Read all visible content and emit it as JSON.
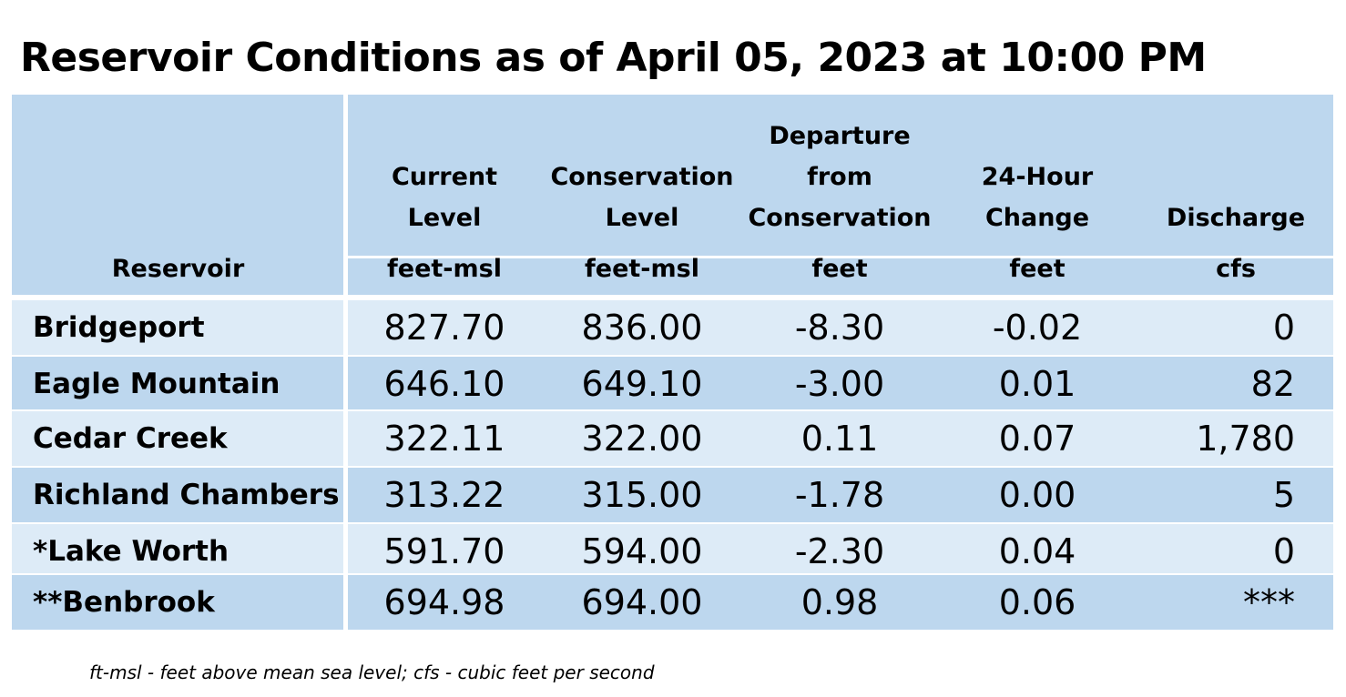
{
  "title": "Reservoir Conditions as of April 05, 2023 at 10:00 PM",
  "header": {
    "reservoir": "Reservoir",
    "current": {
      "line1": "Current",
      "line2": "Level",
      "unit": "feet-msl"
    },
    "conservation": {
      "line1": "Conservation",
      "line2": "Level",
      "unit": "feet-msl"
    },
    "departure": {
      "line1": "Departure",
      "line2": "from",
      "line3": "Conservation",
      "unit": "feet"
    },
    "change": {
      "line1": "24-Hour",
      "line2": "Change",
      "unit": "feet"
    },
    "discharge": {
      "line1": "Discharge",
      "unit": "cfs"
    }
  },
  "rows": [
    {
      "name": "Bridgeport",
      "current": "827.70",
      "conservation": "836.00",
      "departure": "-8.30",
      "change": "-0.02",
      "discharge": "0"
    },
    {
      "name": "Eagle Mountain",
      "current": "646.10",
      "conservation": "649.10",
      "departure": "-3.00",
      "change": "0.01",
      "discharge": "82"
    },
    {
      "name": "Cedar Creek",
      "current": "322.11",
      "conservation": "322.00",
      "departure": "0.11",
      "change": "0.07",
      "discharge": "1,780"
    },
    {
      "name": "Richland Chambers",
      "current": "313.22",
      "conservation": "315.00",
      "departure": "-1.78",
      "change": "0.00",
      "discharge": "5"
    },
    {
      "name": "*Lake Worth",
      "current": "591.70",
      "conservation": "594.00",
      "departure": "-2.30",
      "change": "0.04",
      "discharge": "0"
    },
    {
      "name": "**Benbrook",
      "current": "694.98",
      "conservation": "694.00",
      "departure": "0.98",
      "change": "0.06",
      "discharge": "***"
    }
  ],
  "footnote": "ft-msl - feet above mean sea level; cfs - cubic feet per second"
}
